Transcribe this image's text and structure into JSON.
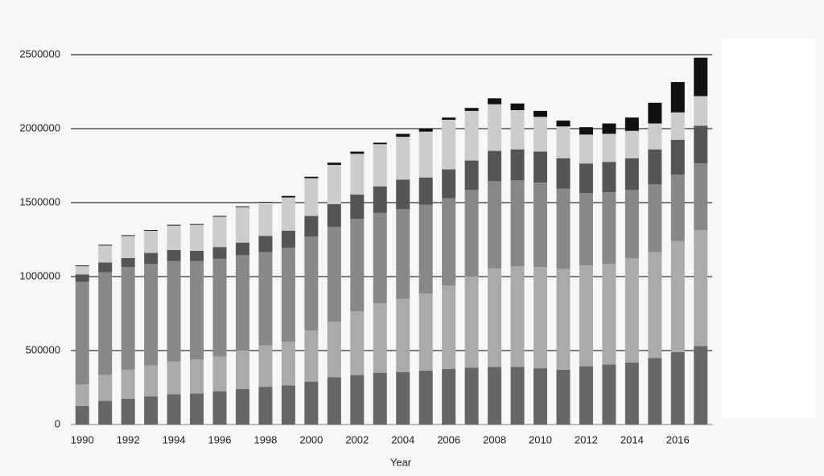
{
  "chart_data": {
    "type": "stacked-bar",
    "x_label": "Year",
    "categories": [
      "1990",
      null,
      "1992",
      null,
      "1994",
      null,
      "1996",
      null,
      "1998",
      null,
      "2000",
      null,
      "2002",
      null,
      "2004",
      null,
      "2006",
      null,
      "2008",
      null,
      "2010",
      null,
      "2012",
      null,
      "2014",
      null,
      "2016",
      null
    ],
    "series": [
      {
        "color": "#666666",
        "values": [
          125000,
          160000,
          175000,
          190000,
          205000,
          210000,
          225000,
          240000,
          255000,
          265000,
          290000,
          320000,
          335000,
          350000,
          355000,
          365000,
          375000,
          385000,
          390000,
          390000,
          380000,
          370000,
          395000,
          405000,
          420000,
          450000,
          490000,
          530000
        ]
      },
      {
        "color": "#aaaaaa",
        "values": [
          145000,
          175000,
          195000,
          210000,
          220000,
          230000,
          235000,
          260000,
          280000,
          295000,
          345000,
          375000,
          430000,
          470000,
          495000,
          520000,
          565000,
          615000,
          665000,
          680000,
          685000,
          680000,
          680000,
          680000,
          705000,
          715000,
          750000,
          785000
        ]
      },
      {
        "color": "#888888",
        "values": [
          695000,
          695000,
          695000,
          685000,
          680000,
          665000,
          660000,
          645000,
          630000,
          635000,
          635000,
          640000,
          625000,
          610000,
          605000,
          600000,
          590000,
          585000,
          590000,
          580000,
          570000,
          545000,
          490000,
          485000,
          460000,
          460000,
          450000,
          450000
        ]
      },
      {
        "color": "#555555",
        "values": [
          50000,
          65000,
          60000,
          75000,
          75000,
          70000,
          80000,
          85000,
          110000,
          115000,
          140000,
          155000,
          165000,
          180000,
          200000,
          185000,
          195000,
          200000,
          205000,
          210000,
          210000,
          205000,
          200000,
          205000,
          215000,
          235000,
          235000,
          255000
        ]
      },
      {
        "color": "#cccccc",
        "values": [
          55000,
          115000,
          150000,
          150000,
          165000,
          175000,
          205000,
          240000,
          225000,
          225000,
          255000,
          265000,
          275000,
          285000,
          290000,
          310000,
          335000,
          335000,
          315000,
          265000,
          235000,
          215000,
          195000,
          190000,
          185000,
          175000,
          185000,
          200000
        ]
      },
      {
        "color": "#111111",
        "values": [
          5000,
          5000,
          5000,
          5000,
          5000,
          5000,
          5000,
          5000,
          5000,
          10000,
          10000,
          15000,
          15000,
          10000,
          20000,
          20000,
          15000,
          20000,
          40000,
          45000,
          40000,
          40000,
          50000,
          70000,
          90000,
          140000,
          205000,
          260000
        ]
      }
    ],
    "ylim": [
      0,
      2500000
    ],
    "yticks": [
      0,
      500000,
      1000000,
      1500000,
      2000000,
      2500000
    ],
    "grid": true
  }
}
